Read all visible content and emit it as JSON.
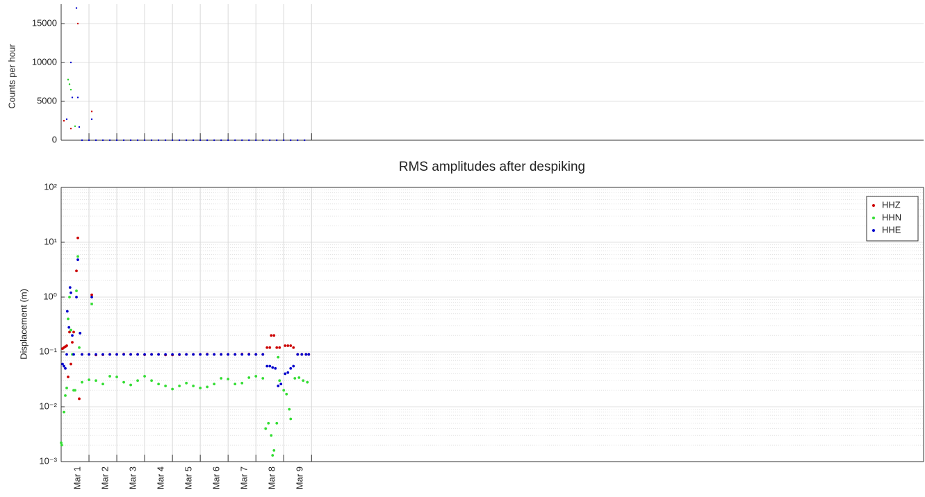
{
  "chart_data": [
    {
      "type": "scatter",
      "ylabel": "Counts per hour",
      "xlim": [
        1,
        32
      ],
      "ylim": [
        0,
        17500
      ],
      "yticks": [
        0,
        5000,
        10000,
        15000
      ],
      "xgrid": [
        2,
        3,
        4,
        5,
        6,
        7,
        8,
        9,
        10
      ],
      "grid": true,
      "series": [
        {
          "color": "#cc0000",
          "x": [
            1.1,
            1.35,
            1.6,
            2.1
          ],
          "values": [
            2500,
            1500,
            15000,
            3700
          ]
        },
        {
          "color": "#22cc22",
          "x": [
            1.25,
            1.3,
            1.35,
            1.5
          ],
          "values": [
            7800,
            7200,
            6500,
            1800
          ]
        },
        {
          "color": "#0000cc",
          "x": [
            1.2,
            1.35,
            1.4,
            1.55,
            1.6,
            1.65,
            2.1,
            1.75,
            2,
            2.25,
            2.5,
            2.75,
            3,
            3.25,
            3.5,
            3.75,
            4,
            4.25,
            4.5,
            4.75,
            5,
            5.25,
            5.5,
            5.75,
            6,
            6.25,
            6.5,
            6.75,
            7,
            7.25,
            7.5,
            7.75,
            8,
            8.25,
            8.5,
            8.75,
            9,
            9.25,
            9.5,
            9.75
          ],
          "values": [
            2700,
            10000,
            5500,
            17000,
            5500,
            1700,
            2700,
            0,
            0,
            0,
            0,
            0,
            0,
            0,
            0,
            0,
            0,
            0,
            0,
            0,
            0,
            0,
            0,
            0,
            0,
            0,
            0,
            0,
            0,
            0,
            0,
            0,
            0,
            0,
            0,
            0,
            0,
            0,
            0,
            0
          ]
        }
      ]
    },
    {
      "type": "scatter",
      "title": "RMS amplitudes after despiking",
      "ylabel": "Displacement (m)",
      "xlim": [
        1,
        32
      ],
      "ylim": [
        0.001,
        100
      ],
      "yscale": "log",
      "yticks": [
        {
          "value": 0.001,
          "label": "10⁻³"
        },
        {
          "value": 0.01,
          "label": "10⁻²"
        },
        {
          "value": 0.1,
          "label": "10⁻¹"
        },
        {
          "value": 1,
          "label": "10⁰"
        },
        {
          "value": 10,
          "label": "10¹"
        },
        {
          "value": 100,
          "label": "10²"
        }
      ],
      "xticks": [
        {
          "value": 1.5,
          "label": "Mar 1"
        },
        {
          "value": 2.5,
          "label": "Mar 2"
        },
        {
          "value": 3.5,
          "label": "Mar 3"
        },
        {
          "value": 4.5,
          "label": "Mar 4"
        },
        {
          "value": 5.5,
          "label": "Mar 5"
        },
        {
          "value": 6.5,
          "label": "Mar 6"
        },
        {
          "value": 7.5,
          "label": "Mar 7"
        },
        {
          "value": 8.5,
          "label": "Mar 8"
        },
        {
          "value": 9.5,
          "label": "Mar 9"
        }
      ],
      "xgrid": [
        2,
        3,
        4,
        5,
        6,
        7,
        8,
        9,
        10
      ],
      "grid": true,
      "minor_grid": true,
      "legend": "northeast",
      "series": [
        {
          "name": "HHZ",
          "color": "#cc0000",
          "x": [
            1.05,
            1.1,
            1.15,
            1.2,
            1.25,
            1.3,
            1.35,
            1.4,
            1.45,
            1.55,
            1.6,
            1.65,
            2.1,
            1.75,
            2,
            2.25,
            2.5,
            2.75,
            3,
            3.25,
            3.5,
            3.75,
            4,
            4.25,
            4.5,
            4.75,
            5,
            5.25,
            5.5,
            5.75,
            6,
            6.25,
            6.5,
            6.75,
            7,
            7.25,
            7.5,
            7.75,
            8,
            8.25,
            8.4,
            8.5,
            8.55,
            8.65,
            8.75,
            8.85,
            9.05,
            9.15,
            9.25,
            9.35,
            9.5,
            9.65,
            9.8,
            9.9
          ],
          "values": [
            0.115,
            0.12,
            0.125,
            0.13,
            0.035,
            0.23,
            0.06,
            0.15,
            0.23,
            3.0,
            12,
            0.014,
            1.1,
            0.09,
            0.09,
            0.088,
            0.089,
            0.09,
            0.09,
            0.091,
            0.09,
            0.09,
            0.089,
            0.09,
            0.09,
            0.088,
            0.088,
            0.089,
            0.09,
            0.09,
            0.09,
            0.091,
            0.09,
            0.09,
            0.09,
            0.09,
            0.091,
            0.091,
            0.09,
            0.09,
            0.12,
            0.12,
            0.2,
            0.2,
            0.12,
            0.12,
            0.13,
            0.13,
            0.13,
            0.12,
            0.09,
            0.09,
            0.09,
            0.09
          ]
        },
        {
          "name": "HHN",
          "color": "#33dd33",
          "x": [
            1.0,
            1.02,
            1.1,
            1.15,
            1.2,
            1.25,
            1.3,
            1.35,
            1.4,
            1.45,
            1.5,
            1.55,
            1.6,
            1.65,
            2.1,
            1.75,
            2,
            2.25,
            2.5,
            2.75,
            3,
            3.25,
            3.5,
            3.75,
            4,
            4.25,
            4.5,
            4.75,
            5,
            5.25,
            5.5,
            5.75,
            6,
            6.25,
            6.5,
            6.75,
            7,
            7.25,
            7.5,
            7.75,
            8,
            8.25,
            8.35,
            8.45,
            8.55,
            8.6,
            8.65,
            8.75,
            8.8,
            8.85,
            9.0,
            9.1,
            9.2,
            9.25,
            9.4,
            9.55,
            9.7,
            9.85
          ],
          "values": [
            0.0022,
            0.002,
            0.008,
            0.016,
            0.022,
            0.4,
            1.0,
            0.25,
            0.09,
            0.02,
            0.02,
            1.3,
            5.5,
            0.12,
            0.75,
            0.028,
            0.031,
            0.03,
            0.026,
            0.036,
            0.035,
            0.028,
            0.025,
            0.03,
            0.036,
            0.03,
            0.026,
            0.024,
            0.021,
            0.024,
            0.027,
            0.024,
            0.022,
            0.023,
            0.026,
            0.033,
            0.032,
            0.026,
            0.027,
            0.034,
            0.036,
            0.033,
            0.004,
            0.005,
            0.003,
            0.0013,
            0.0016,
            0.005,
            0.08,
            0.03,
            0.02,
            0.017,
            0.009,
            0.006,
            0.033,
            0.034,
            0.03,
            0.028
          ]
        },
        {
          "name": "HHE",
          "color": "#0000cc",
          "x": [
            1.05,
            1.1,
            1.15,
            1.2,
            1.22,
            1.28,
            1.32,
            1.35,
            1.4,
            1.45,
            1.55,
            1.6,
            1.68,
            2.1,
            1.75,
            2,
            2.25,
            2.5,
            2.75,
            3,
            3.25,
            3.5,
            3.75,
            4,
            4.25,
            4.5,
            4.75,
            5,
            5.25,
            5.5,
            5.75,
            6,
            6.25,
            6.5,
            6.75,
            7,
            7.25,
            7.5,
            7.75,
            8,
            8.25,
            8.4,
            8.5,
            8.6,
            8.7,
            8.8,
            8.9,
            9.05,
            9.15,
            9.25,
            9.35,
            9.5,
            9.65,
            9.8,
            9.9
          ],
          "values": [
            0.06,
            0.055,
            0.05,
            0.09,
            0.55,
            0.28,
            1.5,
            1.2,
            0.2,
            0.09,
            1.0,
            4.8,
            0.22,
            1.0,
            0.09,
            0.09,
            0.09,
            0.09,
            0.09,
            0.09,
            0.09,
            0.09,
            0.09,
            0.09,
            0.09,
            0.09,
            0.09,
            0.09,
            0.09,
            0.09,
            0.09,
            0.09,
            0.09,
            0.09,
            0.09,
            0.09,
            0.09,
            0.09,
            0.09,
            0.09,
            0.09,
            0.055,
            0.055,
            0.052,
            0.05,
            0.024,
            0.026,
            0.04,
            0.042,
            0.05,
            0.055,
            0.09,
            0.09,
            0.09,
            0.09
          ]
        }
      ]
    }
  ]
}
